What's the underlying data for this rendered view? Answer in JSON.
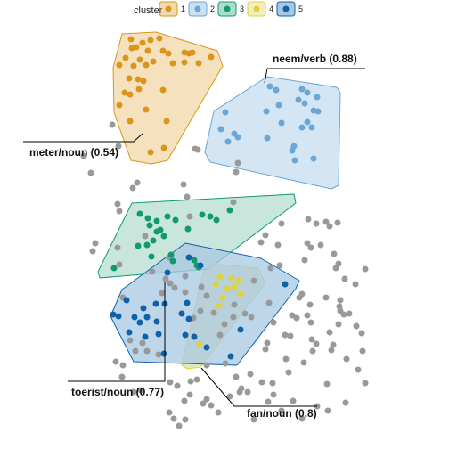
{
  "chart_data": {
    "type": "scatter",
    "title": "",
    "xlabel": "",
    "ylabel": "",
    "legend": {
      "title": "cluster",
      "placement": "top",
      "entries": [
        {
          "label": "1",
          "color": "#D9961A"
        },
        {
          "label": "2",
          "color": "#6AA6D6"
        },
        {
          "label": "3",
          "color": "#119A70"
        },
        {
          "label": "4",
          "color": "#E0D23A"
        },
        {
          "label": "5",
          "color": "#0F62A7"
        }
      ]
    },
    "background_color": "#999999",
    "clusters": [
      {
        "name": "1",
        "color": "#D9961A",
        "fill": "#F1D7A7",
        "hull": [
          [
            137,
            38
          ],
          [
            175,
            36
          ],
          [
            244,
            57
          ],
          [
            250,
            74
          ],
          [
            188,
            180
          ],
          [
            170,
            184
          ],
          [
            147,
            180
          ],
          [
            128,
            126
          ],
          [
            127,
            76
          ]
        ],
        "points": [
          [
            147,
            44
          ],
          [
            160,
            48
          ],
          [
            169,
            45
          ],
          [
            179,
            43
          ],
          [
            153,
            53
          ],
          [
            166,
            57
          ],
          [
            183,
            57
          ],
          [
            141,
            65
          ],
          [
            157,
            67
          ],
          [
            172,
            69
          ],
          [
            189,
            60
          ],
          [
            207,
            59
          ],
          [
            216,
            59
          ],
          [
            134,
            73
          ],
          [
            150,
            74
          ],
          [
            164,
            73
          ],
          [
            194,
            71
          ],
          [
            207,
            70
          ],
          [
            223,
            71
          ],
          [
            237,
            64
          ],
          [
            145,
            88
          ],
          [
            155,
            89
          ],
          [
            161,
            91
          ],
          [
            140,
            104
          ],
          [
            146,
            106
          ],
          [
            156,
            100
          ],
          [
            183,
            101
          ],
          [
            134,
            118
          ],
          [
            164,
            123
          ],
          [
            187,
            136
          ],
          [
            146,
            136
          ],
          [
            184,
            166
          ],
          [
            169,
            171
          ],
          [
            212,
            60
          ],
          [
            148,
            54
          ]
        ]
      },
      {
        "name": "2",
        "color": "#6AA6D6",
        "fill": "#C5DDF0",
        "hull": [
          [
            300,
            86
          ],
          [
            378,
            98
          ],
          [
            382,
            104
          ],
          [
            380,
            208
          ],
          [
            372,
            212
          ],
          [
            236,
            182
          ],
          [
            230,
            171
          ],
          [
            240,
            125
          ]
        ],
        "points": [
          [
            303,
            97
          ],
          [
            339,
            100
          ],
          [
            310,
            101
          ],
          [
            345,
            104
          ],
          [
            313,
            118
          ],
          [
            342,
            116
          ],
          [
            356,
            109
          ],
          [
            335,
            112
          ],
          [
            352,
            124
          ],
          [
            357,
            125
          ],
          [
            253,
            126
          ],
          [
            299,
            125
          ],
          [
            316,
            138
          ],
          [
            248,
            145
          ],
          [
            350,
            143
          ],
          [
            263,
            150
          ],
          [
            339,
            143
          ],
          [
            267,
            154
          ],
          [
            256,
            159
          ],
          [
            345,
            137
          ],
          [
            330,
            164
          ],
          [
            328,
            169
          ],
          [
            331,
            180
          ],
          [
            352,
            178
          ],
          [
            300,
            155
          ]
        ]
      },
      {
        "name": "3",
        "color": "#119A70",
        "fill": "#B5DDCF",
        "hull": [
          [
            148,
            228
          ],
          [
            330,
            218
          ],
          [
            332,
            228
          ],
          [
            234,
            302
          ],
          [
            112,
            312
          ],
          [
            110,
            305
          ]
        ],
        "points": [
          [
            157,
            240
          ],
          [
            166,
            245
          ],
          [
            176,
            248
          ],
          [
            168,
            253
          ],
          [
            188,
            243
          ],
          [
            197,
            247
          ],
          [
            227,
            241
          ],
          [
            236,
            243
          ],
          [
            258,
            236
          ],
          [
            211,
            257
          ],
          [
            243,
            247
          ],
          [
            176,
            260
          ],
          [
            180,
            258
          ],
          [
            184,
            265
          ],
          [
            155,
            276
          ],
          [
            165,
            275
          ],
          [
            172,
            270
          ],
          [
            192,
            286
          ],
          [
            194,
            293
          ],
          [
            128,
            301
          ],
          [
            170,
            288
          ],
          [
            218,
            292
          ],
          [
            221,
            298
          ],
          [
            223,
            300
          ]
        ]
      },
      {
        "name": "4",
        "color": "#E0D23A",
        "fill": "#D9DFA8",
        "hull": [
          [
            238,
            296
          ],
          [
            290,
            301
          ],
          [
            298,
            318
          ],
          [
            225,
            412
          ],
          [
            210,
            414
          ],
          [
            204,
            410
          ],
          [
            228,
            306
          ]
        ],
        "points": [
          [
            247,
            311
          ],
          [
            260,
            312
          ],
          [
            268,
            315
          ],
          [
            242,
            319
          ],
          [
            255,
            324
          ],
          [
            263,
            322
          ],
          [
            270,
            330
          ],
          [
            250,
            334
          ],
          [
            246,
            343
          ],
          [
            224,
            386
          ]
        ]
      },
      {
        "name": "5",
        "color": "#0F62A7",
        "fill": "#A8C8E3",
        "hull": [
          [
            208,
            273
          ],
          [
            293,
            290
          ],
          [
            336,
            315
          ],
          [
            332,
            324
          ],
          [
            266,
            410
          ],
          [
            150,
            406
          ],
          [
            124,
            355
          ],
          [
            137,
            325
          ]
        ],
        "points": [
          [
            212,
            289
          ],
          [
            188,
            306
          ],
          [
            225,
            298
          ],
          [
            320,
            319
          ],
          [
            142,
            337
          ],
          [
            175,
            341
          ],
          [
            185,
            341
          ],
          [
            161,
            346
          ],
          [
            127,
            353
          ],
          [
            133,
            355
          ],
          [
            151,
            356
          ],
          [
            165,
            356
          ],
          [
            157,
            362
          ],
          [
            176,
            361
          ],
          [
            212,
            358
          ],
          [
            145,
            373
          ],
          [
            163,
            378
          ],
          [
            178,
            375
          ],
          [
            208,
            376
          ],
          [
            218,
            378
          ],
          [
            184,
            397
          ],
          [
            259,
            400
          ],
          [
            270,
            370
          ],
          [
            232,
            390
          ],
          [
            204,
            352
          ],
          [
            210,
            340
          ]
        ]
      }
    ],
    "background_points": [
      [
        126,
        140
      ],
      [
        102,
        194
      ],
      [
        94,
        175
      ],
      [
        133,
        164
      ],
      [
        154,
        205
      ],
      [
        149,
        211
      ],
      [
        132,
        229
      ],
      [
        134,
        237
      ],
      [
        132,
        278
      ],
      [
        134,
        297
      ],
      [
        107,
        273
      ],
      [
        104,
        282
      ],
      [
        206,
        207
      ],
      [
        210,
        221
      ],
      [
        219,
        167
      ],
      [
        222,
        168
      ],
      [
        267,
        183
      ],
      [
        265,
        193
      ],
      [
        316,
        251
      ],
      [
        346,
        246
      ],
      [
        355,
        251
      ],
      [
        366,
        249
      ],
      [
        370,
        254
      ],
      [
        379,
        250
      ],
      [
        345,
        273
      ],
      [
        349,
        278
      ],
      [
        360,
        275
      ],
      [
        298,
        264
      ],
      [
        262,
        227
      ],
      [
        293,
        272
      ],
      [
        312,
        275
      ],
      [
        342,
        292
      ],
      [
        304,
        301
      ],
      [
        314,
        298
      ],
      [
        377,
        301
      ],
      [
        380,
        296
      ],
      [
        375,
        285
      ],
      [
        410,
        302
      ],
      [
        387,
        313
      ],
      [
        399,
        319
      ],
      [
        382,
        337
      ],
      [
        381,
        344
      ],
      [
        382,
        349
      ],
      [
        392,
        352
      ],
      [
        386,
        353
      ],
      [
        400,
        366
      ],
      [
        345,
        354
      ],
      [
        349,
        362
      ],
      [
        302,
        340
      ],
      [
        339,
        330
      ],
      [
        328,
        354
      ],
      [
        307,
        362
      ],
      [
        300,
        385
      ],
      [
        298,
        392
      ],
      [
        281,
        420
      ],
      [
        271,
        436
      ],
      [
        265,
        423
      ],
      [
        258,
        445
      ],
      [
        269,
        440
      ],
      [
        294,
        429
      ],
      [
        306,
        430
      ],
      [
        307,
        443
      ],
      [
        321,
        403
      ],
      [
        324,
        418
      ],
      [
        341,
        407
      ],
      [
        350,
        381
      ],
      [
        355,
        386
      ],
      [
        374,
        387
      ],
      [
        370,
        373
      ],
      [
        380,
        364
      ],
      [
        406,
        374
      ],
      [
        407,
        394
      ],
      [
        402,
        415
      ],
      [
        389,
        403
      ],
      [
        367,
        431
      ],
      [
        356,
        456
      ],
      [
        339,
        470
      ],
      [
        285,
        471
      ],
      [
        245,
        463
      ],
      [
        232,
        448
      ],
      [
        221,
        426
      ],
      [
        214,
        428
      ],
      [
        207,
        450
      ],
      [
        228,
        453
      ],
      [
        237,
        455
      ],
      [
        138,
        410
      ],
      [
        137,
        423
      ],
      [
        130,
        406
      ],
      [
        158,
        438
      ],
      [
        150,
        440
      ],
      [
        191,
        429
      ],
      [
        199,
        433
      ],
      [
        195,
        470
      ],
      [
        201,
        478
      ],
      [
        208,
        471
      ],
      [
        247,
        376
      ],
      [
        252,
        364
      ],
      [
        262,
        356
      ],
      [
        275,
        352
      ],
      [
        282,
        356
      ],
      [
        240,
        351
      ],
      [
        263,
        342
      ],
      [
        253,
        408
      ],
      [
        186,
        313
      ],
      [
        182,
        329
      ],
      [
        196,
        323
      ],
      [
        208,
        328
      ],
      [
        217,
        357
      ],
      [
        225,
        349
      ],
      [
        320,
        376
      ],
      [
        326,
        377
      ],
      [
        348,
        342
      ],
      [
        366,
        334
      ],
      [
        333,
        357
      ],
      [
        336,
        334
      ],
      [
        285,
        315
      ],
      [
        163,
        265
      ],
      [
        190,
        289
      ],
      [
        213,
        243
      ],
      [
        191,
        318
      ],
      [
        226,
        322
      ],
      [
        232,
        332
      ],
      [
        138,
        334
      ],
      [
        152,
        394
      ],
      [
        178,
        398
      ],
      [
        213,
        443
      ],
      [
        190,
        463
      ],
      [
        301,
        451
      ],
      [
        316,
        461
      ],
      [
        329,
        450
      ],
      [
        372,
        393
      ],
      [
        351,
        394
      ],
      [
        410,
        430
      ],
      [
        388,
        452
      ],
      [
        368,
        461
      ],
      [
        278,
        440
      ],
      [
        232,
        410
      ],
      [
        146,
        382
      ],
      [
        165,
        394
      ],
      [
        160,
        385
      ],
      [
        171,
        305
      ],
      [
        208,
        310
      ]
    ],
    "annotations": [
      {
        "text": "meter/noun (0.54)",
        "anchor": "left",
        "line": [
          [
            26,
            159
          ],
          [
            150,
            159
          ],
          [
            160,
            150
          ]
        ],
        "text_pos": [
          33,
          175
        ]
      },
      {
        "text": "neem/verb (0.88)",
        "anchor": "left",
        "line": [
          [
            300,
            77
          ],
          [
            410,
            77
          ],
          [
            410,
            77
          ]
        ],
        "line2": [
          [
            300,
            77
          ],
          [
            297,
            93
          ]
        ],
        "text_pos": [
          306,
          70
        ]
      },
      {
        "text": "toerist/noun (0.77)",
        "anchor": "left",
        "line": [
          [
            76,
            428
          ],
          [
            185,
            428
          ],
          [
            185,
            316
          ]
        ],
        "text_pos": [
          80,
          444
        ]
      },
      {
        "text": "fan/noun (0.8)",
        "anchor": "left",
        "line": [
          [
            226,
            413
          ],
          [
            263,
            456
          ],
          [
            356,
            456
          ]
        ],
        "text_pos": [
          277,
          468
        ]
      }
    ]
  }
}
